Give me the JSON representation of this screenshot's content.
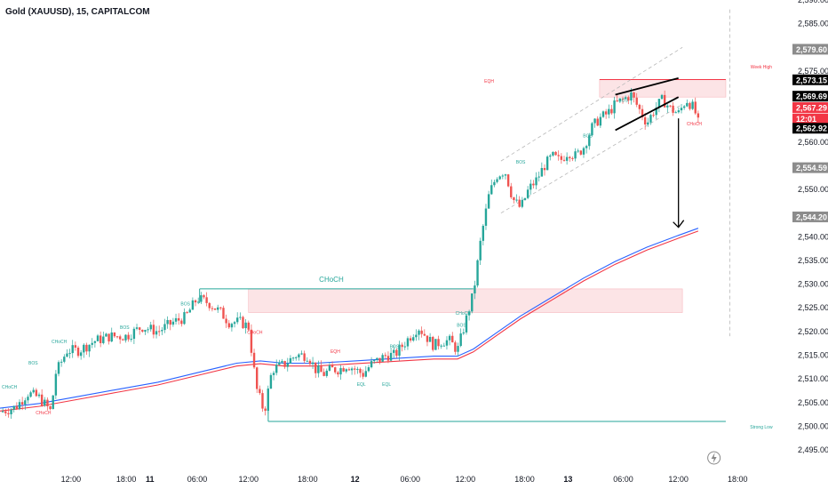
{
  "chart_title": "Gold (XAUUSD), 15, CAPITALCOM",
  "colors": {
    "up": "#26a69a",
    "down": "#ef5350",
    "ma_blue": "#2962ff",
    "ma_red": "#f23645",
    "zone": "#fce4e6",
    "zone_border": "#f7b9bf",
    "green_line": "#26a69a",
    "dash_grey": "#b8b8b8"
  },
  "chart_data": {
    "type": "candlestick",
    "ylim": [
      2492,
      2590
    ],
    "yticks": [
      "2,590.00",
      "2,585.00",
      "2,575.00",
      "2,570.00",
      "2,560.00",
      "2,550.00",
      "2,540.00",
      "2,535.00",
      "2,530.00",
      "2,525.00",
      "2,520.00",
      "2,515.00",
      "2,510.00",
      "2,505.00",
      "2,500.00",
      "2,495.00"
    ],
    "ytick_values": [
      2590,
      2585,
      2575,
      2570,
      2560,
      2550,
      2540,
      2535,
      2530,
      2525,
      2520,
      2515,
      2510,
      2505,
      2500,
      2495
    ],
    "xticks": [
      {
        "label": "12:00",
        "t": 0.09,
        "bold": false
      },
      {
        "label": "18:00",
        "t": 0.16,
        "bold": false
      },
      {
        "label": "11",
        "t": 0.19,
        "bold": true
      },
      {
        "label": "06:00",
        "t": 0.25,
        "bold": false
      },
      {
        "label": "12:00",
        "t": 0.315,
        "bold": false
      },
      {
        "label": "18:00",
        "t": 0.39,
        "bold": false
      },
      {
        "label": "12",
        "t": 0.45,
        "bold": true
      },
      {
        "label": "06:00",
        "t": 0.52,
        "bold": false
      },
      {
        "label": "12:00",
        "t": 0.59,
        "bold": false
      },
      {
        "label": "18:00",
        "t": 0.665,
        "bold": false
      },
      {
        "label": "13",
        "t": 0.72,
        "bold": true
      },
      {
        "label": "06:00",
        "t": 0.79,
        "bold": false
      },
      {
        "label": "12:00",
        "t": 0.86,
        "bold": false
      },
      {
        "label": "18:00",
        "t": 0.935,
        "bold": false
      }
    ],
    "price_path": [
      [
        0,
        2503
      ],
      [
        0.02,
        2504
      ],
      [
        0.035,
        2507
      ],
      [
        0.05,
        2506
      ],
      [
        0.065,
        2503
      ],
      [
        0.07,
        2511
      ],
      [
        0.085,
        2516
      ],
      [
        0.1,
        2516
      ],
      [
        0.12,
        2518
      ],
      [
        0.14,
        2519
      ],
      [
        0.16,
        2519
      ],
      [
        0.18,
        2521
      ],
      [
        0.2,
        2520
      ],
      [
        0.22,
        2522
      ],
      [
        0.235,
        2523
      ],
      [
        0.25,
        2527
      ],
      [
        0.265,
        2526
      ],
      [
        0.28,
        2524
      ],
      [
        0.29,
        2522
      ],
      [
        0.305,
        2522
      ],
      [
        0.315,
        2521
      ],
      [
        0.325,
        2508
      ],
      [
        0.335,
        2503
      ],
      [
        0.345,
        2512
      ],
      [
        0.36,
        2513
      ],
      [
        0.375,
        2515
      ],
      [
        0.39,
        2515
      ],
      [
        0.4,
        2512
      ],
      [
        0.41,
        2511
      ],
      [
        0.42,
        2512
      ],
      [
        0.43,
        2512
      ],
      [
        0.44,
        2513
      ],
      [
        0.45,
        2512
      ],
      [
        0.46,
        2511
      ],
      [
        0.47,
        2513
      ],
      [
        0.48,
        2514
      ],
      [
        0.49,
        2515
      ],
      [
        0.5,
        2515
      ],
      [
        0.51,
        2517
      ],
      [
        0.52,
        2519
      ],
      [
        0.53,
        2521
      ],
      [
        0.54,
        2519
      ],
      [
        0.55,
        2517
      ],
      [
        0.56,
        2518
      ],
      [
        0.57,
        2518
      ],
      [
        0.58,
        2516
      ],
      [
        0.59,
        2522
      ],
      [
        0.6,
        2528
      ],
      [
        0.61,
        2540
      ],
      [
        0.62,
        2549
      ],
      [
        0.63,
        2553
      ],
      [
        0.64,
        2554
      ],
      [
        0.65,
        2548
      ],
      [
        0.66,
        2546
      ],
      [
        0.67,
        2550
      ],
      [
        0.68,
        2552
      ],
      [
        0.69,
        2555
      ],
      [
        0.7,
        2557
      ],
      [
        0.71,
        2556
      ],
      [
        0.72,
        2558
      ],
      [
        0.73,
        2557
      ],
      [
        0.74,
        2559
      ],
      [
        0.75,
        2563
      ],
      [
        0.76,
        2565
      ],
      [
        0.77,
        2566
      ],
      [
        0.78,
        2568
      ],
      [
        0.79,
        2569
      ],
      [
        0.8,
        2570
      ],
      [
        0.81,
        2567
      ],
      [
        0.82,
        2564
      ],
      [
        0.83,
        2567
      ],
      [
        0.84,
        2569
      ],
      [
        0.85,
        2567
      ],
      [
        0.86,
        2566
      ],
      [
        0.87,
        2569
      ],
      [
        0.88,
        2567
      ],
      [
        0.885,
        2564
      ]
    ],
    "ma_path": [
      [
        0,
        2503.5
      ],
      [
        0.05,
        2504.5
      ],
      [
        0.1,
        2506
      ],
      [
        0.15,
        2507.5
      ],
      [
        0.2,
        2509
      ],
      [
        0.25,
        2511
      ],
      [
        0.3,
        2513
      ],
      [
        0.33,
        2513.5
      ],
      [
        0.36,
        2513
      ],
      [
        0.4,
        2513
      ],
      [
        0.45,
        2513.5
      ],
      [
        0.5,
        2514
      ],
      [
        0.55,
        2514.5
      ],
      [
        0.58,
        2514.5
      ],
      [
        0.6,
        2516
      ],
      [
        0.63,
        2519.5
      ],
      [
        0.66,
        2523
      ],
      [
        0.7,
        2527
      ],
      [
        0.74,
        2531
      ],
      [
        0.78,
        2534.5
      ],
      [
        0.82,
        2537.5
      ],
      [
        0.86,
        2540
      ],
      [
        0.885,
        2541.5
      ]
    ],
    "candles_count": 250,
    "price_tags": [
      {
        "label": "2,579.60",
        "value": 2579.6,
        "color": "#8c8c8c",
        "text": "#ffffff"
      },
      {
        "label": "2,573.15",
        "value": 2573.15,
        "color": "#000000",
        "text": "#ffffff"
      },
      {
        "label": "2,569.69",
        "value": 2569.69,
        "color": "#000000",
        "text": "#ffffff"
      },
      {
        "label": "2,567.29",
        "value": 2567.29,
        "color": "#f23645",
        "text": "#ffffff"
      },
      {
        "label": "12:01",
        "value": 2564.9,
        "color": "#f23645",
        "text": "#ffffff"
      },
      {
        "label": "2,562.92",
        "value": 2562.92,
        "color": "#000000",
        "text": "#ffffff"
      },
      {
        "label": "2,554.59",
        "value": 2554.59,
        "color": "#8c8c8c",
        "text": "#ffffff"
      },
      {
        "label": "2,544.20",
        "value": 2544.2,
        "color": "#8c8c8c",
        "text": "#ffffff"
      }
    ],
    "annotations": {
      "choch_label": "CHoCH",
      "week_high": "Week High",
      "strong_low": "Strong Low",
      "bos": "BOS",
      "choch_small": "CHoCH",
      "eqh": "EQH",
      "eql": "EQL"
    },
    "zones": [
      {
        "t0": 0.315,
        "t1": 0.865,
        "y0": 2529,
        "y1": 2524
      },
      {
        "t0": 0.76,
        "t1": 0.92,
        "y0": 2573.2,
        "y1": 2569.5
      }
    ],
    "levels": [
      {
        "t0": 0.253,
        "t1": 0.6,
        "y": 2529,
        "label": "CHoCH"
      },
      {
        "t0": 0.34,
        "t1": 0.92,
        "y": 2501,
        "label": "Strong Low"
      },
      {
        "t0": 0.76,
        "t1": 0.92,
        "y": 2573.2,
        "label": "Week High"
      }
    ],
    "channel": {
      "t0": 0.635,
      "t1": 0.865,
      "top0": 2556,
      "top1": 2580,
      "bot0": 2545,
      "bot1": 2568
    },
    "triangle": {
      "t0": 0.78,
      "t1": 0.86,
      "top0": 2570,
      "top1": 2573.5,
      "bot0": 2562.5,
      "bot1": 2569.5
    },
    "projection": {
      "t": 0.86,
      "from": 2565,
      "to": 2542
    }
  }
}
